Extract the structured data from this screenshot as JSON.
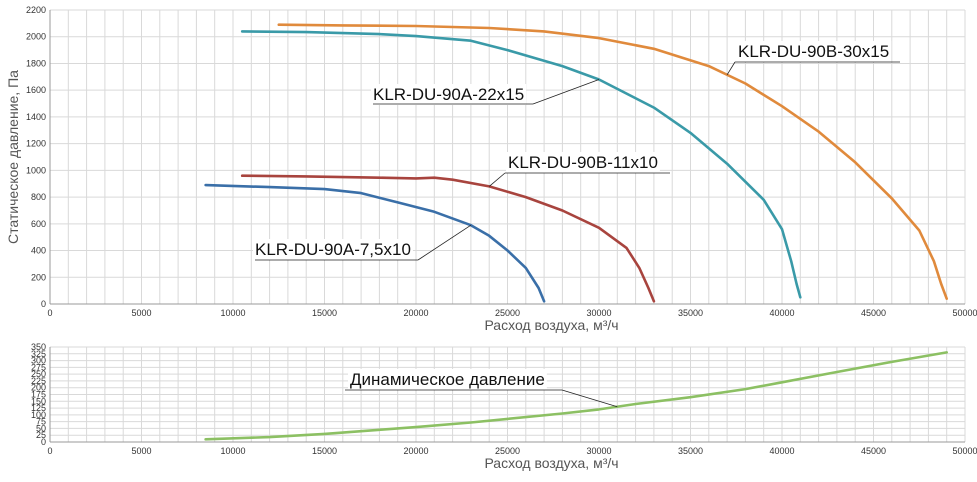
{
  "chart_data": [
    {
      "type": "line",
      "xlabel": "Расход воздуха, м³/ч",
      "ylabel": "Статическое давление, Па",
      "xlim": [
        0,
        50000
      ],
      "ylim": [
        0,
        2200
      ],
      "x_ticks": [
        0,
        5000,
        10000,
        15000,
        20000,
        25000,
        30000,
        35000,
        40000,
        45000,
        50000
      ],
      "y_ticks": [
        0,
        200,
        400,
        600,
        800,
        1000,
        1200,
        1400,
        1600,
        1800,
        2000,
        2200
      ],
      "grid": true,
      "series": [
        {
          "name": "KLR-DU-90A-7,5x10",
          "color": "#3a6fa8",
          "points": [
            [
              8500,
              890
            ],
            [
              12000,
              875
            ],
            [
              15000,
              860
            ],
            [
              17000,
              830
            ],
            [
              19000,
              760
            ],
            [
              21000,
              690
            ],
            [
              23000,
              590
            ],
            [
              24000,
              510
            ],
            [
              25000,
              400
            ],
            [
              26000,
              270
            ],
            [
              26700,
              120
            ],
            [
              27000,
              20
            ]
          ]
        },
        {
          "name": "KLR-DU-90B-11x10",
          "color": "#a8443e",
          "points": [
            [
              10500,
              960
            ],
            [
              14000,
              955
            ],
            [
              18000,
              945
            ],
            [
              20000,
              940
            ],
            [
              21000,
              945
            ],
            [
              22000,
              930
            ],
            [
              24000,
              880
            ],
            [
              26000,
              800
            ],
            [
              28000,
              700
            ],
            [
              30000,
              570
            ],
            [
              31500,
              420
            ],
            [
              32200,
              270
            ],
            [
              32700,
              120
            ],
            [
              33000,
              20
            ]
          ]
        },
        {
          "name": "KLR-DU-90A-22x15",
          "color": "#3a9aa8",
          "points": [
            [
              10500,
              2040
            ],
            [
              14000,
              2035
            ],
            [
              18000,
              2020
            ],
            [
              20000,
              2005
            ],
            [
              23000,
              1970
            ],
            [
              25000,
              1900
            ],
            [
              28000,
              1780
            ],
            [
              30000,
              1680
            ],
            [
              33000,
              1470
            ],
            [
              35000,
              1280
            ],
            [
              37000,
              1050
            ],
            [
              39000,
              780
            ],
            [
              40000,
              560
            ],
            [
              40500,
              320
            ],
            [
              40800,
              150
            ],
            [
              41000,
              50
            ]
          ]
        },
        {
          "name": "KLR-DU-90B-30x15",
          "color": "#e08a3c",
          "points": [
            [
              12500,
              2090
            ],
            [
              16000,
              2085
            ],
            [
              20000,
              2080
            ],
            [
              24000,
              2065
            ],
            [
              27000,
              2040
            ],
            [
              30000,
              1990
            ],
            [
              33000,
              1910
            ],
            [
              36000,
              1780
            ],
            [
              38000,
              1650
            ],
            [
              40000,
              1480
            ],
            [
              42000,
              1290
            ],
            [
              44000,
              1060
            ],
            [
              46000,
              790
            ],
            [
              47500,
              550
            ],
            [
              48300,
              320
            ],
            [
              48700,
              150
            ],
            [
              49000,
              40
            ]
          ]
        }
      ],
      "annotations": [
        {
          "text": "KLR-DU-90B-30x15",
          "series": 3
        },
        {
          "text": "KLR-DU-90A-22x15",
          "series": 2
        },
        {
          "text": "KLR-DU-90B-11x10",
          "series": 1
        },
        {
          "text": "KLR-DU-90A-7,5x10",
          "series": 0
        }
      ]
    },
    {
      "type": "line",
      "xlabel": "Расход воздуха, м³/ч",
      "ylabel": "",
      "xlim": [
        0,
        50000
      ],
      "ylim": [
        0,
        350
      ],
      "x_ticks": [
        0,
        5000,
        10000,
        15000,
        20000,
        25000,
        30000,
        35000,
        40000,
        45000,
        50000
      ],
      "y_ticks": [
        0,
        25,
        50,
        75,
        100,
        125,
        150,
        175,
        200,
        225,
        250,
        275,
        300,
        325,
        350
      ],
      "grid": true,
      "series": [
        {
          "name": "Динамическое давление",
          "color": "#8cc063",
          "points": [
            [
              8500,
              10
            ],
            [
              12000,
              18
            ],
            [
              15000,
              30
            ],
            [
              18000,
              45
            ],
            [
              20000,
              55
            ],
            [
              23000,
              72
            ],
            [
              25000,
              85
            ],
            [
              28000,
              105
            ],
            [
              30000,
              120
            ],
            [
              32000,
              140
            ],
            [
              35000,
              165
            ],
            [
              38000,
              195
            ],
            [
              40000,
              220
            ],
            [
              43000,
              258
            ],
            [
              46000,
              295
            ],
            [
              49000,
              330
            ]
          ]
        }
      ],
      "annotations": [
        {
          "text": "Динамическое давление",
          "series": 0
        }
      ]
    }
  ]
}
